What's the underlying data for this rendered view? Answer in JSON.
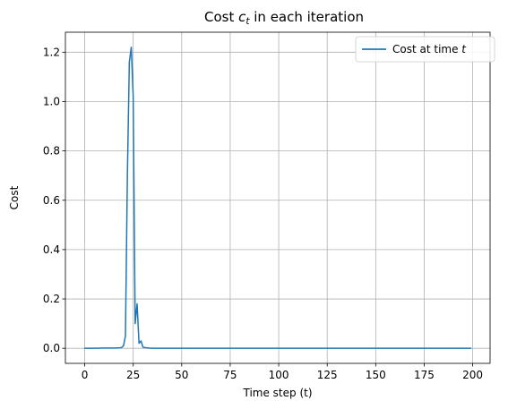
{
  "chart_data": {
    "type": "line",
    "title": {
      "prefix": "Cost ",
      "var": "c",
      "sub": "t",
      "suffix": " in each iteration"
    },
    "xlabel": "Time step (t)",
    "ylabel": "Cost",
    "xlim": [
      -9.95,
      208.95
    ],
    "ylim": [
      -0.061,
      1.281
    ],
    "xticks": [
      0,
      25,
      50,
      75,
      100,
      125,
      150,
      175,
      200
    ],
    "yticks": [
      0.0,
      0.2,
      0.4,
      0.6,
      0.8,
      1.0,
      1.2
    ],
    "ytick_labels": [
      "0.0",
      "0.2",
      "0.4",
      "0.6",
      "0.8",
      "1.0",
      "1.2"
    ],
    "grid": true,
    "legend": {
      "position": "upper right",
      "entries": [
        {
          "text_prefix": "Cost at time ",
          "text_var": "t"
        }
      ]
    },
    "series": [
      {
        "name": "Cost at time t",
        "color": "#1f77b4",
        "x": [
          0,
          5,
          10,
          15,
          18,
          19,
          20,
          21,
          22,
          23,
          24,
          25,
          26,
          27,
          28,
          29,
          30,
          31,
          32,
          33,
          35,
          40,
          50,
          100,
          150,
          199
        ],
        "y": [
          0.0,
          0.0,
          0.001,
          0.001,
          0.002,
          0.003,
          0.01,
          0.05,
          0.7,
          1.16,
          1.22,
          1.02,
          0.1,
          0.18,
          0.02,
          0.03,
          0.005,
          0.003,
          0.002,
          0.001,
          0.0,
          0.0,
          0.0,
          0.0,
          0.0,
          0.0
        ]
      }
    ]
  }
}
